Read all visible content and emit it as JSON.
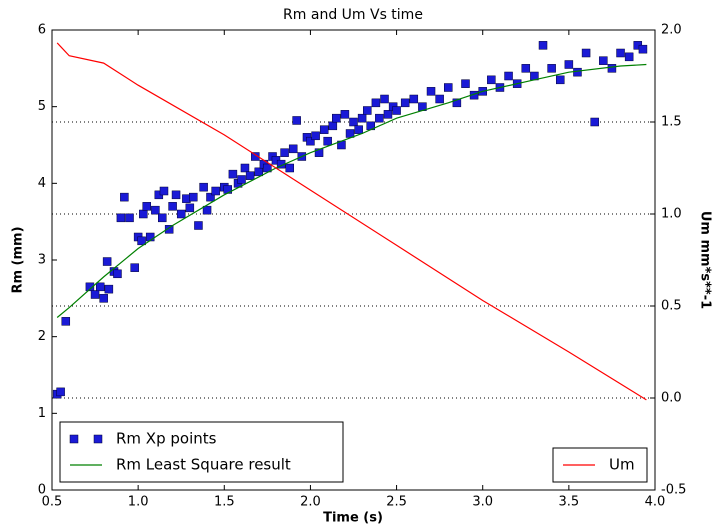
{
  "chart_data": {
    "type": "combo",
    "title": "Rm and Um Vs time",
    "x_label": "Time (s)",
    "y_label": "Rm (mm)",
    "y2_label": "Um mm*s**-1",
    "xlim": [
      0.5,
      4.0
    ],
    "xticks": [
      0.5,
      {
        "value": 1,
        "label": "1.0"
      },
      1.5,
      {
        "value": 2,
        "label": "2.0"
      },
      2.5,
      {
        "value": 3,
        "label": "3.0"
      },
      3.5,
      {
        "value": 4,
        "label": "4.0"
      }
    ],
    "ylim": [
      0,
      6
    ],
    "yticks": [
      0,
      1,
      2,
      3,
      4,
      5,
      6
    ],
    "y2lim": [
      -0.5,
      2.0
    ],
    "y2ticks": [
      -0.5,
      {
        "value": 0,
        "label": "0.0"
      },
      0.5,
      {
        "value": 1,
        "label": "1.0"
      },
      1.5,
      {
        "value": 2,
        "label": "2.0"
      }
    ],
    "grid_y2": true,
    "legend": "lower left",
    "y2_legend": "lower right",
    "series": [
      {
        "name": "Rm Xp points",
        "type": "scatter",
        "color": "#1a1ad6",
        "x": [
          0.53,
          0.55,
          0.58,
          0.72,
          0.75,
          0.78,
          0.8,
          0.82,
          0.83,
          0.86,
          0.88,
          0.9,
          0.92,
          0.95,
          0.98,
          1.0,
          1.02,
          1.03,
          1.05,
          1.07,
          1.1,
          1.12,
          1.14,
          1.15,
          1.18,
          1.2,
          1.22,
          1.25,
          1.28,
          1.3,
          1.32,
          1.35,
          1.38,
          1.4,
          1.42,
          1.45,
          1.5,
          1.52,
          1.55,
          1.58,
          1.6,
          1.62,
          1.65,
          1.68,
          1.7,
          1.73,
          1.75,
          1.78,
          1.8,
          1.83,
          1.85,
          1.88,
          1.9,
          1.92,
          1.95,
          1.98,
          2.0,
          2.03,
          2.05,
          2.08,
          2.1,
          2.13,
          2.15,
          2.18,
          2.2,
          2.23,
          2.25,
          2.28,
          2.3,
          2.33,
          2.35,
          2.38,
          2.4,
          2.43,
          2.45,
          2.48,
          2.5,
          2.55,
          2.6,
          2.65,
          2.7,
          2.75,
          2.8,
          2.85,
          2.9,
          2.95,
          3.0,
          3.05,
          3.1,
          3.15,
          3.2,
          3.25,
          3.3,
          3.35,
          3.4,
          3.45,
          3.5,
          3.55,
          3.6,
          3.65,
          3.7,
          3.75,
          3.8,
          3.85,
          3.9,
          3.93
        ],
        "values": [
          1.25,
          1.28,
          2.2,
          2.65,
          2.55,
          2.65,
          2.5,
          2.98,
          2.62,
          2.85,
          2.82,
          3.55,
          3.82,
          3.55,
          2.9,
          3.3,
          3.25,
          3.6,
          3.7,
          3.3,
          3.65,
          3.85,
          3.55,
          3.9,
          3.4,
          3.7,
          3.85,
          3.6,
          3.8,
          3.68,
          3.82,
          3.45,
          3.95,
          3.65,
          3.82,
          3.9,
          3.95,
          3.92,
          4.12,
          4.0,
          4.05,
          4.2,
          4.1,
          4.35,
          4.15,
          4.25,
          4.2,
          4.35,
          4.3,
          4.25,
          4.4,
          4.2,
          4.45,
          4.82,
          4.35,
          4.6,
          4.55,
          4.62,
          4.4,
          4.7,
          4.55,
          4.75,
          4.85,
          4.5,
          4.9,
          4.65,
          4.8,
          4.7,
          4.85,
          4.95,
          4.75,
          5.05,
          4.85,
          5.1,
          4.9,
          5.0,
          4.95,
          5.05,
          5.1,
          5.0,
          5.2,
          5.1,
          5.25,
          5.05,
          5.3,
          5.15,
          5.2,
          5.35,
          5.25,
          5.4,
          5.3,
          5.5,
          5.4,
          5.8,
          5.5,
          5.35,
          5.55,
          5.45,
          5.7,
          4.8,
          5.6,
          5.5,
          5.7,
          5.65,
          5.8,
          5.75
        ]
      },
      {
        "name": "Rm Least Square result",
        "type": "line",
        "color": "#008000",
        "x": [
          0.53,
          0.6,
          0.8,
          1.0,
          1.2,
          1.5,
          1.8,
          2.0,
          2.3,
          2.5,
          2.8,
          3.0,
          3.3,
          3.5,
          3.8,
          3.95
        ],
        "values": [
          2.25,
          2.38,
          2.78,
          3.15,
          3.45,
          3.85,
          4.2,
          4.4,
          4.65,
          4.85,
          5.05,
          5.2,
          5.35,
          5.45,
          5.53,
          5.55
        ]
      },
      {
        "name": "Um",
        "type": "line",
        "color": "#ff0000",
        "axis": "y2",
        "x": [
          0.53,
          0.55,
          0.6,
          0.8,
          1.0,
          1.5,
          2.0,
          2.5,
          3.0,
          3.5,
          3.95
        ],
        "values": [
          1.93,
          1.91,
          1.86,
          1.82,
          1.7,
          1.43,
          1.13,
          0.83,
          0.53,
          0.25,
          -0.01
        ]
      }
    ]
  }
}
